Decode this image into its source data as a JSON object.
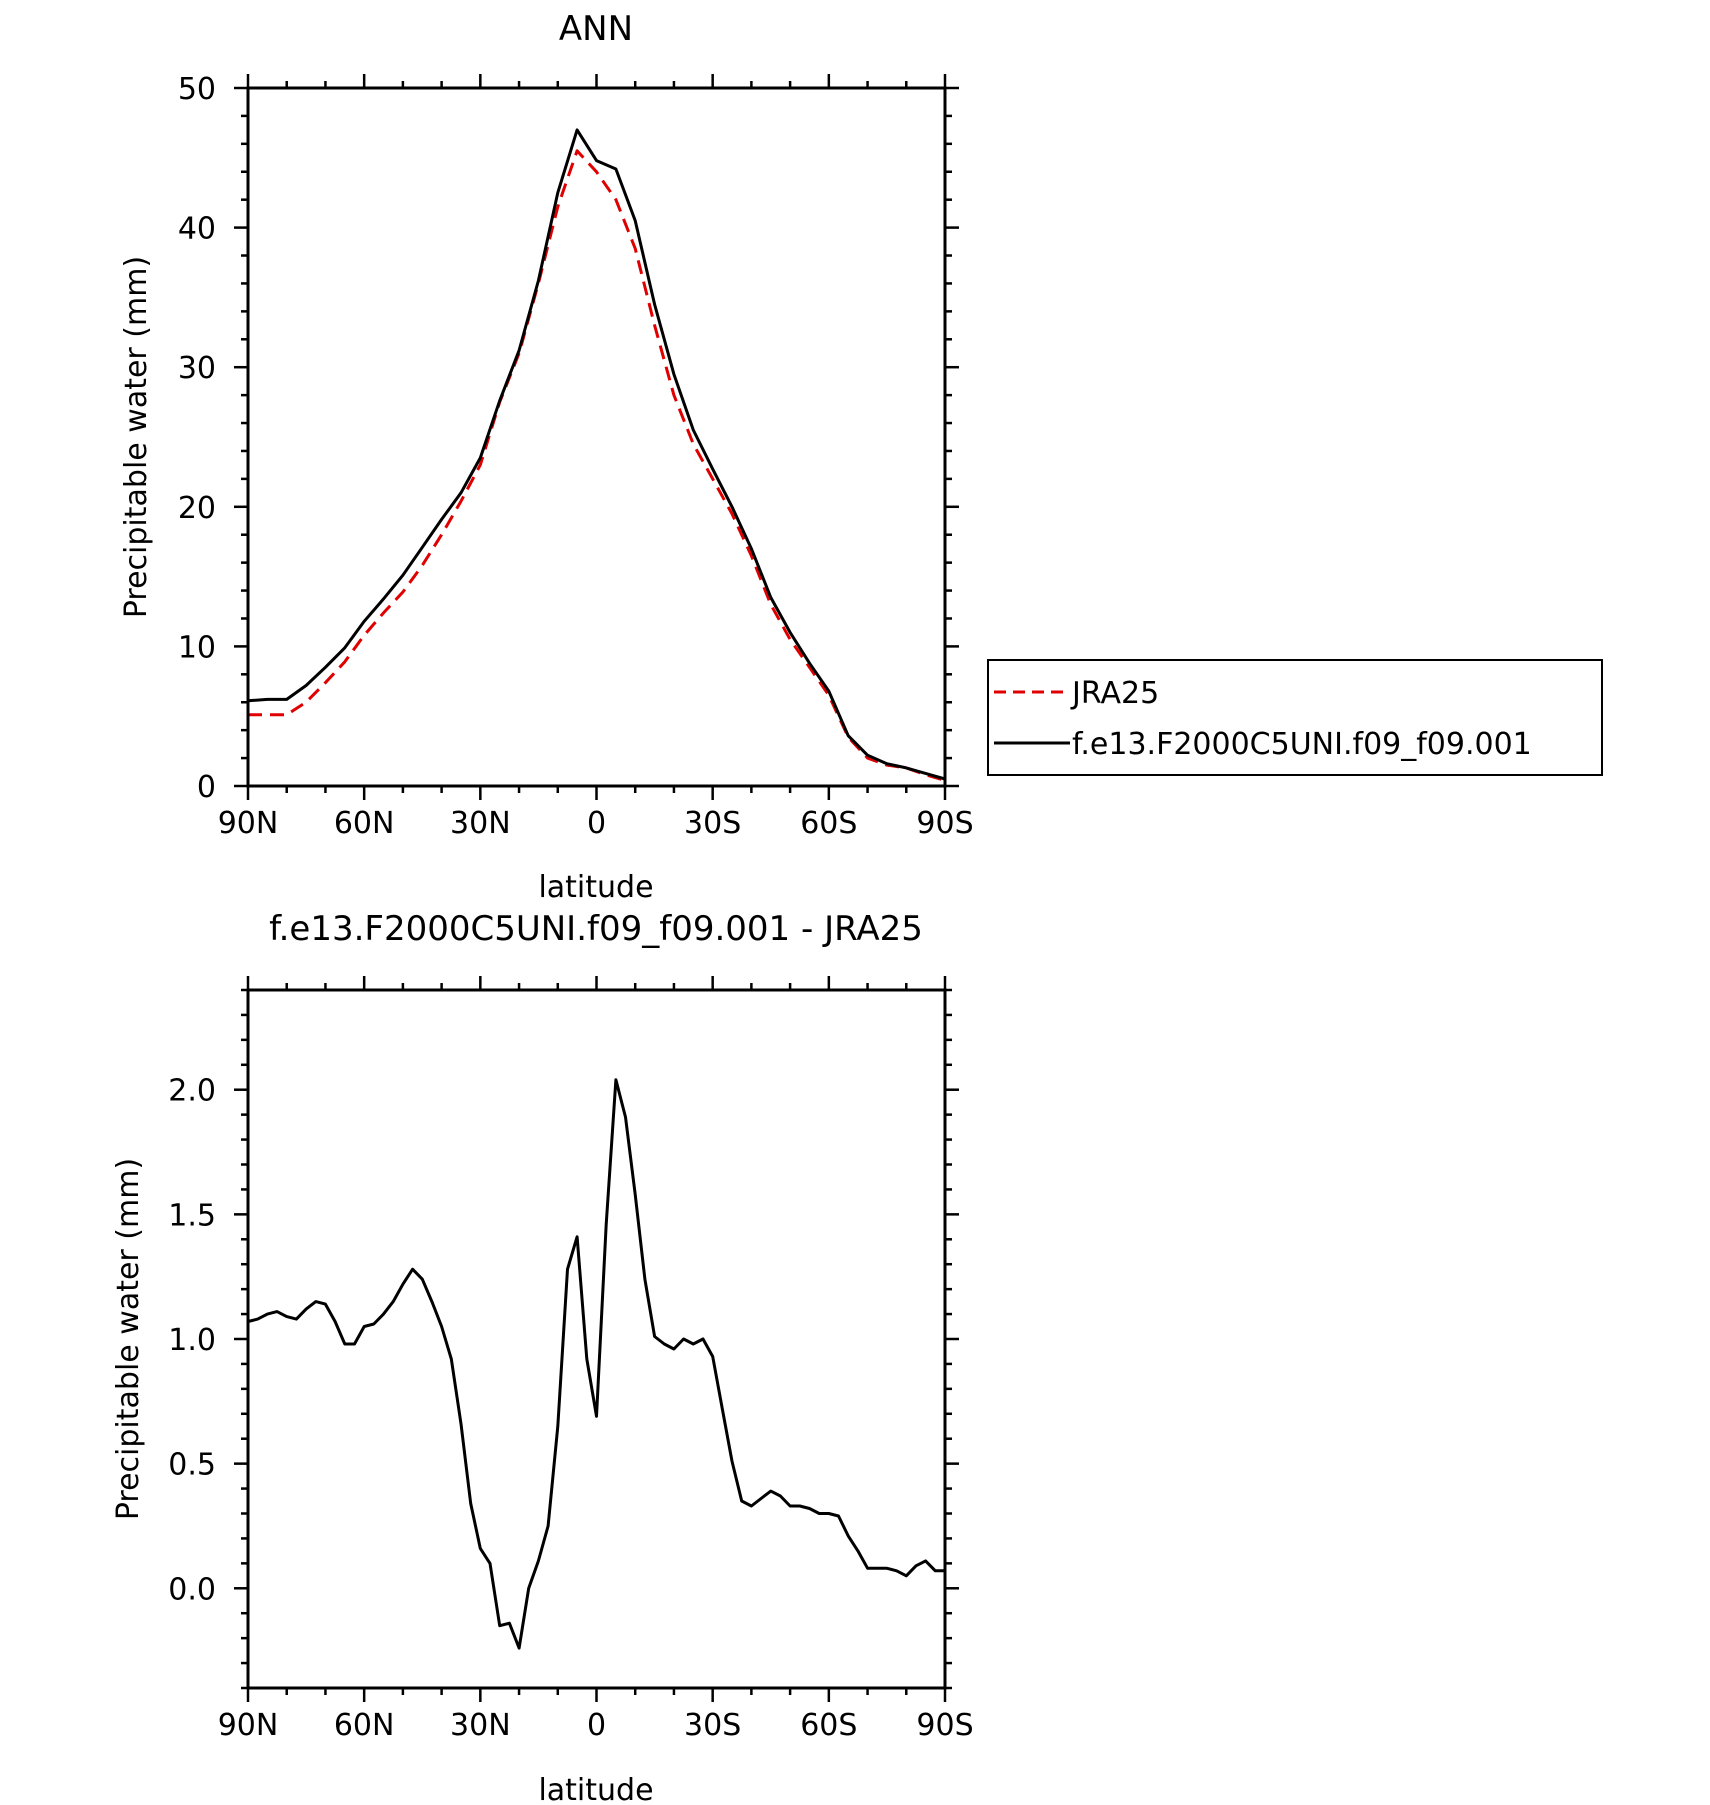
{
  "chart_data": [
    {
      "type": "line",
      "title": "ANN",
      "xlabel": "latitude",
      "ylabel": "Precipitable water (mm)",
      "xlim": [
        90,
        -90
      ],
      "ylim": [
        0,
        50
      ],
      "x_tick_values": [
        90,
        60,
        30,
        0,
        -30,
        -60,
        -90
      ],
      "x_tick_labels": [
        "90N",
        "60N",
        "30N",
        "0",
        "30S",
        "60S",
        "90S"
      ],
      "y_tick_values": [
        0,
        10,
        20,
        30,
        40,
        50
      ],
      "y_tick_labels": [
        "0",
        "10",
        "20",
        "30",
        "40",
        "50"
      ],
      "grid": false,
      "legend": "right",
      "x": [
        90,
        85,
        80,
        75,
        70,
        65,
        60,
        55,
        50,
        45,
        40,
        35,
        30,
        25,
        20,
        15,
        10,
        5,
        0,
        -5,
        -10,
        -15,
        -20,
        -25,
        -30,
        -35,
        -40,
        -45,
        -50,
        -55,
        -60,
        -65,
        -70,
        -75,
        -80,
        -85,
        -90
      ],
      "series": [
        {
          "name": "JRA25",
          "color": "#e00000",
          "dash": "dashed",
          "values": [
            5.1,
            5.1,
            5.1,
            6.0,
            7.4,
            8.9,
            10.8,
            12.4,
            13.9,
            15.8,
            18.0,
            20.4,
            23.0,
            27.5,
            31.0,
            36.0,
            41.5,
            45.5,
            44.0,
            42.0,
            38.5,
            33.0,
            28.0,
            24.5,
            22.0,
            19.5,
            16.5,
            13.0,
            10.5,
            8.5,
            6.5,
            3.5,
            2.0,
            1.5,
            1.3,
            0.8,
            0.4
          ]
        },
        {
          "name": "f.e13.F2000C5UNI.f09_f09.001",
          "color": "#000000",
          "dash": "solid",
          "values": [
            6.1,
            6.2,
            6.2,
            7.2,
            8.5,
            9.9,
            11.8,
            13.4,
            15.1,
            17.1,
            19.1,
            21.0,
            23.5,
            27.6,
            31.2,
            36.2,
            42.5,
            47.0,
            44.8,
            44.2,
            40.5,
            34.5,
            29.5,
            25.5,
            22.7,
            20.0,
            17.0,
            13.5,
            11.0,
            8.8,
            6.8,
            3.6,
            2.2,
            1.6,
            1.3,
            0.9,
            0.5
          ]
        }
      ]
    },
    {
      "type": "line",
      "title": "f.e13.F2000C5UNI.f09_f09.001 - JRA25",
      "xlabel": "latitude",
      "ylabel": "Precipitable water (mm)",
      "xlim": [
        90,
        -90
      ],
      "ylim": [
        -0.4,
        2.4
      ],
      "x_tick_values": [
        90,
        60,
        30,
        0,
        -30,
        -60,
        -90
      ],
      "x_tick_labels": [
        "90N",
        "60N",
        "30N",
        "0",
        "30S",
        "60S",
        "90S"
      ],
      "y_tick_values": [
        0.0,
        0.5,
        1.0,
        1.5,
        2.0
      ],
      "y_tick_labels": [
        "0.0",
        "0.5",
        "1.0",
        "1.5",
        "2.0"
      ],
      "grid": false,
      "series": [
        {
          "color": "#000000",
          "dash": "solid",
          "x": [
            90,
            87.5,
            85,
            82.5,
            80,
            77.5,
            75,
            72.5,
            70,
            67.5,
            65,
            62.5,
            60,
            57.5,
            55,
            52.5,
            50,
            47.5,
            45,
            42.5,
            40,
            37.5,
            35,
            32.5,
            30,
            27.5,
            25,
            22.5,
            20,
            17.5,
            15,
            12.5,
            10,
            7.5,
            5,
            2.5,
            0,
            -2.5,
            -5,
            -7.5,
            -10,
            -12.5,
            -15,
            -17.5,
            -20,
            -22.5,
            -25,
            -27.5,
            -30,
            -32.5,
            -35,
            -37.5,
            -40,
            -42.5,
            -45,
            -47.5,
            -50,
            -52.5,
            -55,
            -57.5,
            -60,
            -62.5,
            -65,
            -67.5,
            -70,
            -72.5,
            -75,
            -77.5,
            -80,
            -82.5,
            -85,
            -87.5,
            -90
          ],
          "values": [
            1.07,
            1.08,
            1.1,
            1.11,
            1.09,
            1.08,
            1.12,
            1.15,
            1.14,
            1.07,
            0.98,
            0.98,
            1.05,
            1.06,
            1.1,
            1.15,
            1.22,
            1.28,
            1.24,
            1.15,
            1.05,
            0.92,
            0.66,
            0.34,
            0.16,
            0.1,
            -0.15,
            -0.14,
            -0.24,
            0.0,
            0.11,
            0.25,
            0.65,
            1.28,
            1.41,
            0.92,
            0.69,
            1.46,
            2.04,
            1.89,
            1.58,
            1.24,
            1.01,
            0.98,
            0.96,
            1.0,
            0.98,
            1.0,
            0.93,
            0.72,
            0.51,
            0.35,
            0.33,
            0.36,
            0.39,
            0.37,
            0.33,
            0.33,
            0.32,
            0.3,
            0.3,
            0.29,
            0.21,
            0.15,
            0.08,
            0.08,
            0.08,
            0.07,
            0.05,
            0.09,
            0.11,
            0.07,
            0.07
          ]
        }
      ]
    }
  ]
}
